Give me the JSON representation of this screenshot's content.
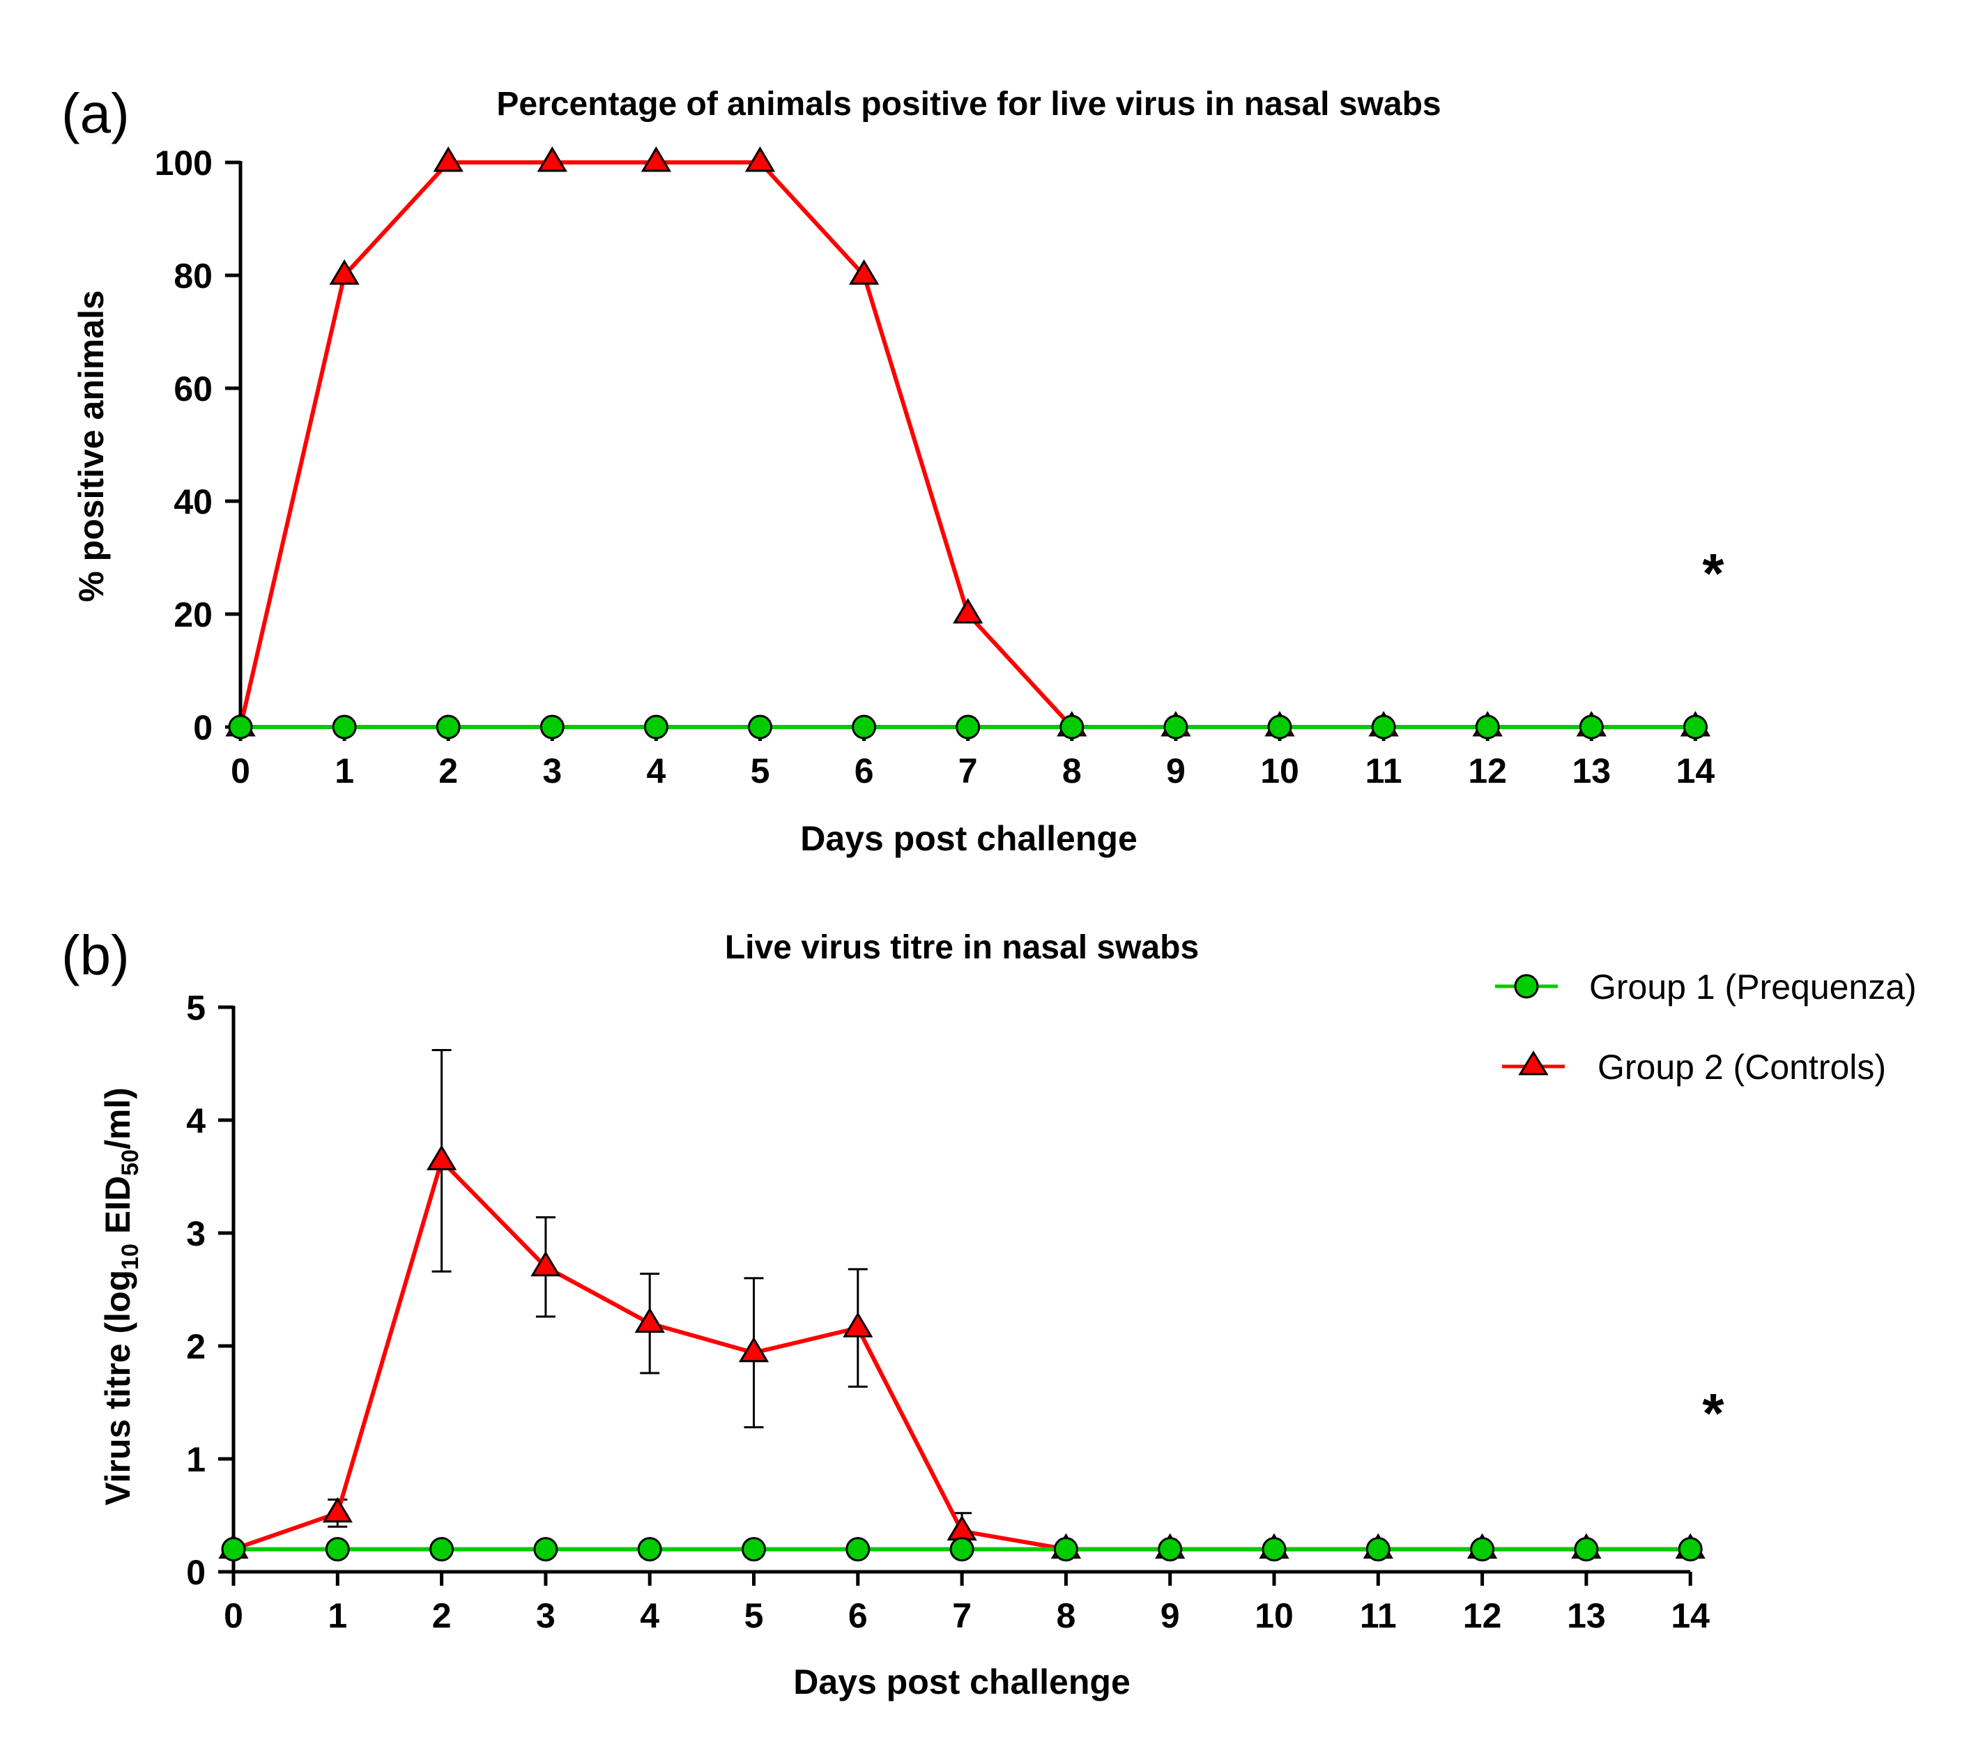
{
  "chart_data": [
    {
      "type": "line",
      "panel_label": "(a)",
      "title": "Percentage of animals positive for live virus in nasal swabs",
      "xlabel": "Days post challenge",
      "ylabel": "% positive animals",
      "ylim": [
        0,
        100
      ],
      "xlim": [
        0,
        14
      ],
      "x": [
        0,
        1,
        2,
        3,
        4,
        5,
        6,
        7,
        8,
        9,
        10,
        11,
        12,
        13,
        14
      ],
      "x_ticks": [
        "0",
        "1",
        "2",
        "3",
        "4",
        "5",
        "6",
        "7",
        "8",
        "9",
        "10",
        "11",
        "12",
        "13",
        "14"
      ],
      "y_ticks": [
        "0",
        "20",
        "40",
        "60",
        "80",
        "100"
      ],
      "y_tick_values": [
        0,
        20,
        40,
        60,
        80,
        100
      ],
      "annotation": "*",
      "series": [
        {
          "name": "Group 2 (Controls)",
          "color": "#ff0000",
          "marker": "triangle",
          "values": [
            0,
            80,
            100,
            100,
            100,
            100,
            80,
            20,
            0,
            0,
            0,
            0,
            0,
            0,
            0
          ]
        },
        {
          "name": "Group 1 (Prequenza)",
          "color": "#00cc00",
          "marker": "circle",
          "values": [
            0,
            0,
            0,
            0,
            0,
            0,
            0,
            0,
            0,
            0,
            0,
            0,
            0,
            0,
            0
          ]
        }
      ]
    },
    {
      "type": "line",
      "panel_label": "(b)",
      "title": "Live virus titre in nasal swabs",
      "xlabel": "Days post challenge",
      "ylabel_parts": [
        "Virus titre (log",
        "10",
        " EID",
        "50",
        "/ml)"
      ],
      "ylim": [
        0,
        5
      ],
      "xlim": [
        0,
        14
      ],
      "x": [
        0,
        1,
        2,
        3,
        4,
        5,
        6,
        7,
        8,
        9,
        10,
        11,
        12,
        13,
        14
      ],
      "x_ticks": [
        "0",
        "1",
        "2",
        "3",
        "4",
        "5",
        "6",
        "7",
        "8",
        "9",
        "10",
        "11",
        "12",
        "13",
        "14"
      ],
      "y_ticks": [
        "0",
        "1",
        "2",
        "3",
        "4",
        "5"
      ],
      "y_tick_values": [
        0,
        1,
        2,
        3,
        4,
        5
      ],
      "annotation": "*",
      "legend": {
        "position": "top-right"
      },
      "series": [
        {
          "name": "Group 2 (Controls)",
          "color": "#ff0000",
          "marker": "triangle",
          "values": [
            0.2,
            0.52,
            3.64,
            2.7,
            2.2,
            1.94,
            2.16,
            0.36,
            0.2,
            0.2,
            0.2,
            0.2,
            0.2,
            0.2,
            0.2
          ],
          "errors": [
            0,
            0.12,
            0.98,
            0.44,
            0.44,
            0.66,
            0.52,
            0.16,
            0,
            0,
            0,
            0,
            0,
            0,
            0
          ]
        },
        {
          "name": "Group 1 (Prequenza)",
          "color": "#00cc00",
          "marker": "circle",
          "values": [
            0.2,
            0.2,
            0.2,
            0.2,
            0.2,
            0.2,
            0.2,
            0.2,
            0.2,
            0.2,
            0.2,
            0.2,
            0.2,
            0.2,
            0.2
          ]
        }
      ]
    }
  ],
  "legend_items": [
    {
      "label": "Group 1 (Prequenza)",
      "color": "#00cc00",
      "marker": "circle"
    },
    {
      "label": "Group 2 (Controls)",
      "color": "#ff0000",
      "marker": "triangle"
    }
  ]
}
